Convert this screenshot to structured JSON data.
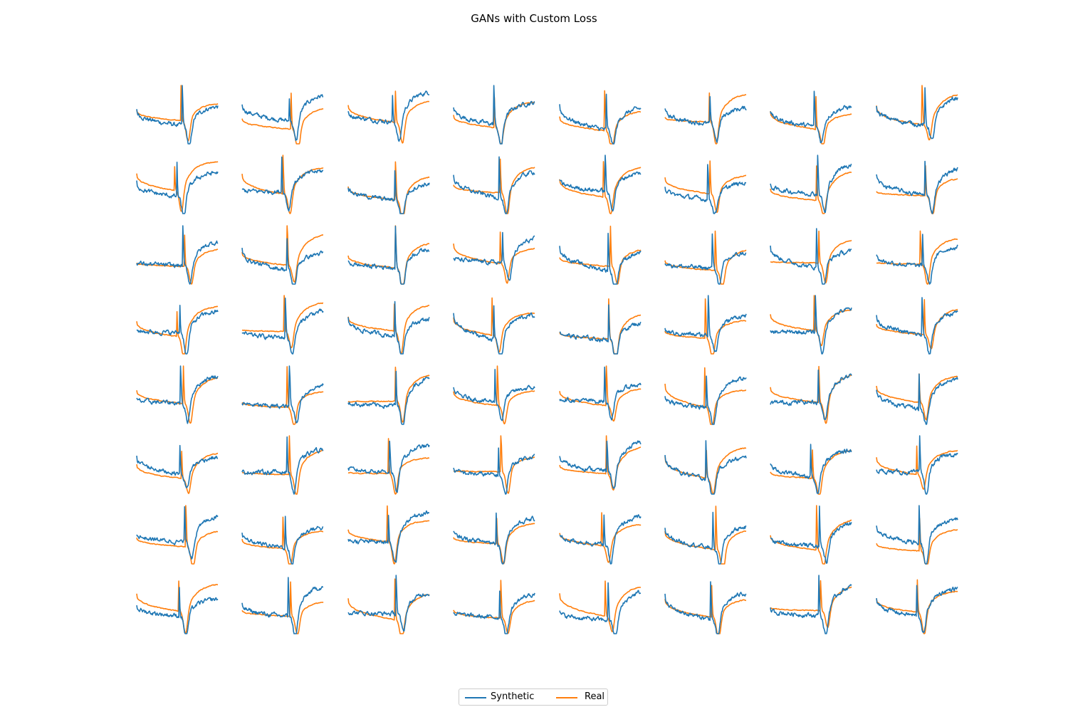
{
  "chart_data": {
    "type": "line",
    "title": "GANs with Custom Loss",
    "layout_grid": "8x8 small multiples, axes hidden",
    "rows": 8,
    "cols": 8,
    "grid": false,
    "axes_visible": false,
    "legend_placement": "lower-center",
    "series": [
      {
        "name": "Synthetic",
        "color": "#1f77b4"
      },
      {
        "name": "Real",
        "color": "#ff7f0e"
      }
    ]
  }
}
